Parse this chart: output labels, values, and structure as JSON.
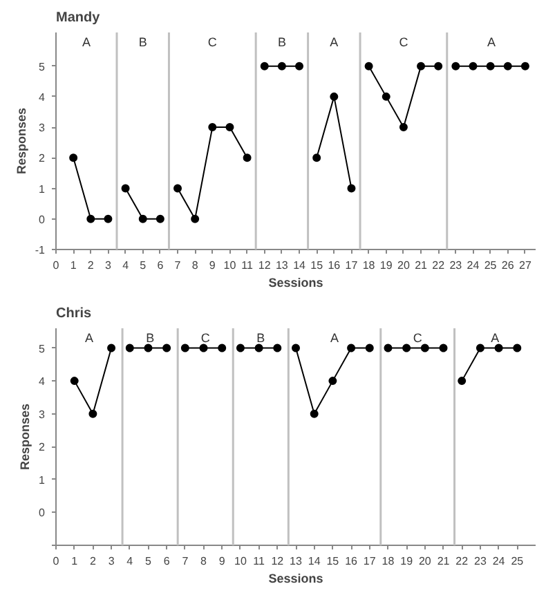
{
  "chart_data": [
    {
      "type": "line",
      "title": "Mandy",
      "xlabel": "Sessions",
      "ylabel": "Responses",
      "marker": "circle",
      "grid": false,
      "xlim": [
        0,
        27.6
      ],
      "ylim": [
        -1,
        6.1
      ],
      "xticks": [
        0,
        1,
        2,
        3,
        4,
        5,
        6,
        7,
        8,
        9,
        10,
        11,
        12,
        13,
        14,
        15,
        16,
        17,
        18,
        19,
        20,
        21,
        22,
        23,
        24,
        25,
        26,
        27
      ],
      "yticks": [
        -1,
        0,
        1,
        2,
        3,
        4,
        5
      ],
      "series": [
        {
          "color": "#000000",
          "x": [
            1,
            2,
            3
          ],
          "values": [
            2,
            0,
            0
          ]
        },
        {
          "color": "#000000",
          "x": [
            4,
            5,
            6
          ],
          "values": [
            1,
            0,
            0
          ]
        },
        {
          "color": "#000000",
          "x": [
            7,
            8,
            9,
            10,
            11
          ],
          "values": [
            1,
            0,
            3,
            3,
            2
          ]
        },
        {
          "color": "#000000",
          "x": [
            12,
            13,
            14
          ],
          "values": [
            5,
            5,
            5
          ]
        },
        {
          "color": "#000000",
          "x": [
            15,
            16,
            17
          ],
          "values": [
            2,
            4,
            1
          ]
        },
        {
          "color": "#000000",
          "x": [
            18,
            19,
            20,
            21,
            22
          ],
          "values": [
            5,
            4,
            3,
            5,
            5
          ]
        },
        {
          "color": "#000000",
          "x": [
            23,
            24,
            25,
            26,
            27
          ],
          "values": [
            5,
            5,
            5,
            5,
            5
          ]
        }
      ],
      "ref_lines": [
        {
          "axis": "x",
          "value": 3.5,
          "color": "#c0c0c0"
        },
        {
          "axis": "x",
          "value": 6.5,
          "color": "#c0c0c0"
        },
        {
          "axis": "x",
          "value": 11.5,
          "color": "#c0c0c0"
        },
        {
          "axis": "x",
          "value": 14.5,
          "color": "#c0c0c0"
        },
        {
          "axis": "x",
          "value": 17.5,
          "color": "#c0c0c0"
        },
        {
          "axis": "x",
          "value": 22.5,
          "color": "#c0c0c0"
        }
      ],
      "annotations": [
        "A",
        "B",
        "C",
        "B",
        "A",
        "C",
        "A"
      ]
    },
    {
      "type": "line",
      "title": "Chris",
      "xlabel": "Sessions",
      "ylabel": "Responses",
      "marker": "circle",
      "grid": false,
      "xlim": [
        0,
        26
      ],
      "ylim": [
        -1,
        5.6
      ],
      "xticks": [
        0,
        1,
        2,
        3,
        4,
        5,
        6,
        7,
        8,
        9,
        10,
        11,
        12,
        13,
        14,
        15,
        16,
        17,
        18,
        19,
        20,
        21,
        22,
        23,
        24,
        25
      ],
      "yticks": [
        {
          "value": -1,
          "label": null
        },
        0,
        1,
        2,
        3,
        4,
        5
      ],
      "series": [
        {
          "color": "#000000",
          "x": [
            1,
            2,
            3
          ],
          "values": [
            4,
            3,
            5
          ]
        },
        {
          "color": "#000000",
          "x": [
            4,
            5,
            6
          ],
          "values": [
            5,
            5,
            5
          ]
        },
        {
          "color": "#000000",
          "x": [
            7,
            8,
            9
          ],
          "values": [
            5,
            5,
            5
          ]
        },
        {
          "color": "#000000",
          "x": [
            10,
            11,
            12
          ],
          "values": [
            5,
            5,
            5
          ]
        },
        {
          "color": "#000000",
          "x": [
            13,
            14,
            15,
            16,
            17
          ],
          "values": [
            5,
            3,
            4,
            5,
            5
          ]
        },
        {
          "color": "#000000",
          "x": [
            18,
            19,
            20,
            21
          ],
          "values": [
            5,
            5,
            5,
            5
          ]
        },
        {
          "color": "#000000",
          "x": [
            22,
            23,
            24,
            25
          ],
          "values": [
            4,
            5,
            5,
            5
          ]
        }
      ],
      "ref_lines": [
        {
          "axis": "x",
          "value": 3.6,
          "color": "#c0c0c0"
        },
        {
          "axis": "x",
          "value": 6.6,
          "color": "#c0c0c0"
        },
        {
          "axis": "x",
          "value": 9.6,
          "color": "#c0c0c0"
        },
        {
          "axis": "x",
          "value": 12.6,
          "color": "#c0c0c0"
        },
        {
          "axis": "x",
          "value": 17.6,
          "color": "#c0c0c0"
        },
        {
          "axis": "x",
          "value": 21.6,
          "color": "#c0c0c0"
        }
      ],
      "annotations": [
        "A",
        "B",
        "C",
        "B",
        "A",
        "C",
        "A"
      ]
    }
  ]
}
